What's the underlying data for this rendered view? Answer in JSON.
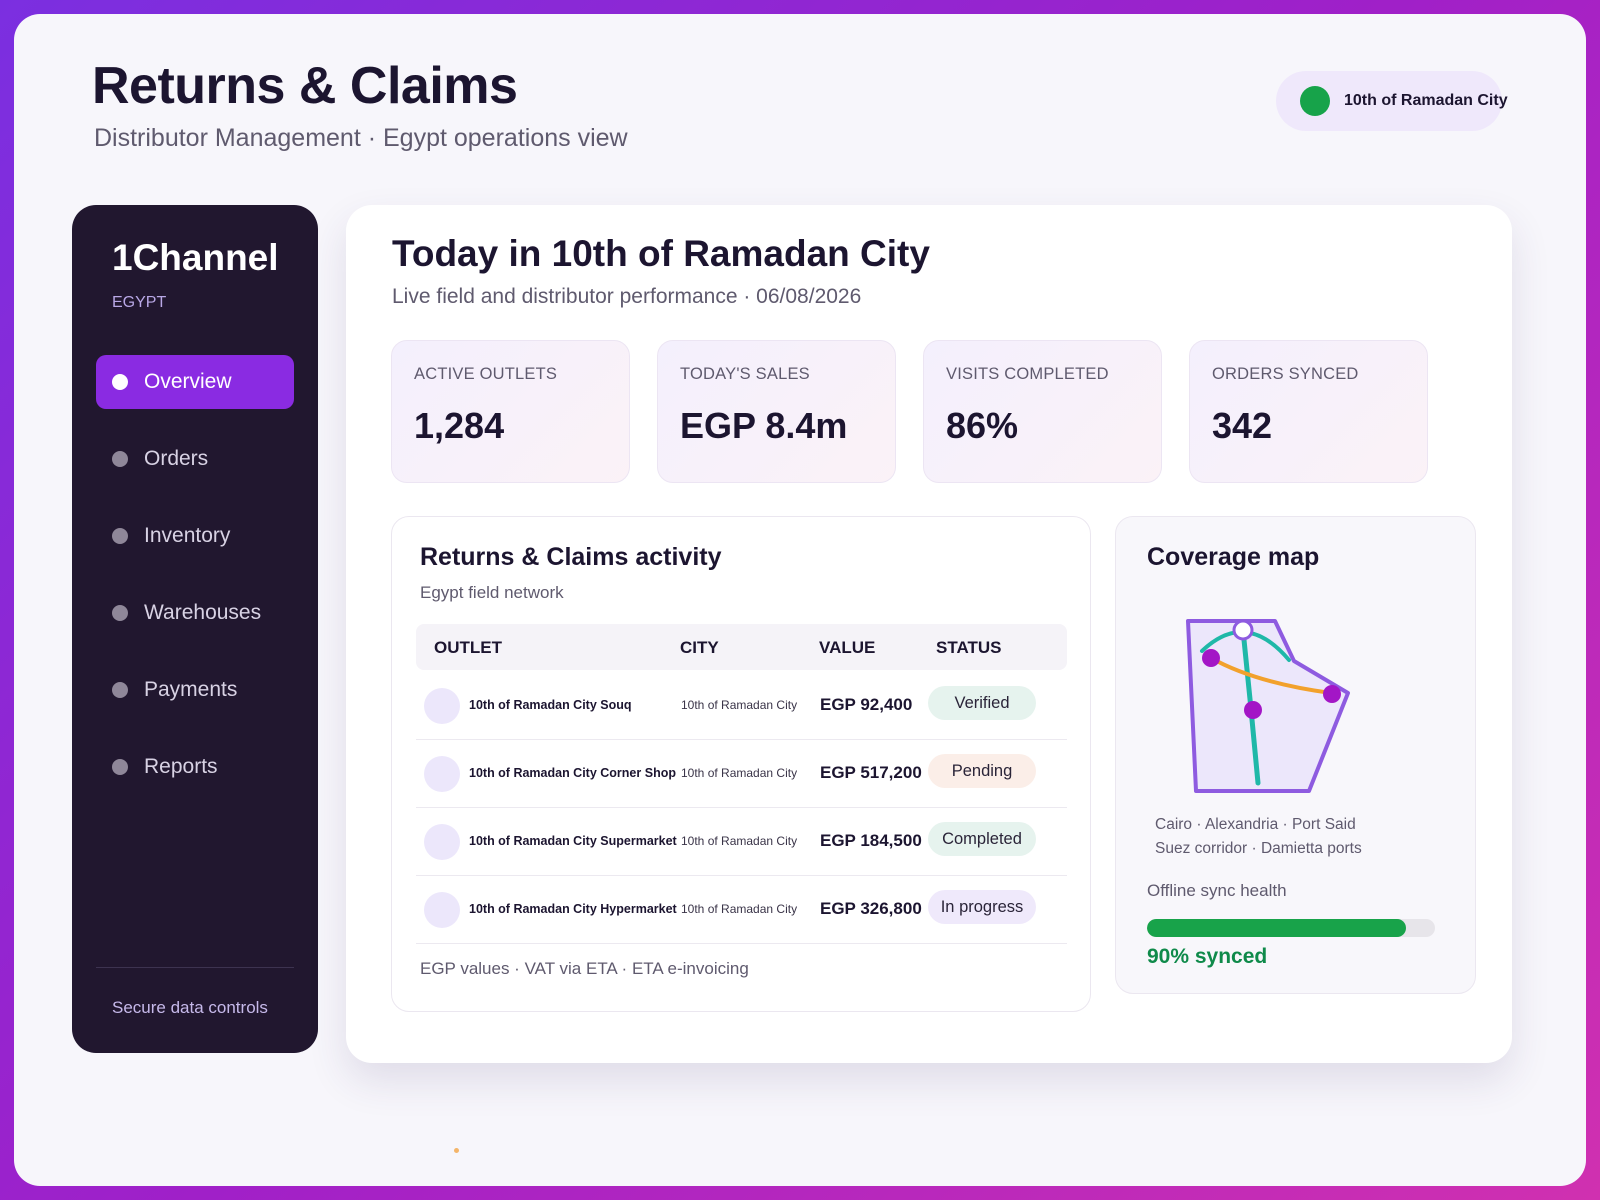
{
  "header": {
    "title": "Returns & Claims",
    "subtitle": "Distributor Management · Egypt operations view",
    "location": "10th of Ramadan City",
    "location_dot_color": "#17a34a"
  },
  "sidebar": {
    "brand": "1Channel",
    "country": "EGYPT",
    "items": [
      {
        "label": "Overview",
        "active": true
      },
      {
        "label": "Orders",
        "active": false
      },
      {
        "label": "Inventory",
        "active": false
      },
      {
        "label": "Warehouses",
        "active": false
      },
      {
        "label": "Payments",
        "active": false
      },
      {
        "label": "Reports",
        "active": false
      }
    ],
    "footer": "Secure data controls",
    "accent_color": "#8a2be2"
  },
  "main": {
    "title": "Today in 10th of Ramadan City",
    "subtitle": "Live field and distributor performance · 06/08/2026",
    "kpis": [
      {
        "label": "ACTIVE OUTLETS",
        "value": "1,284"
      },
      {
        "label": "TODAY'S SALES",
        "value": "EGP 8.4m"
      },
      {
        "label": "VISITS COMPLETED",
        "value": "86%"
      },
      {
        "label": "ORDERS SYNCED",
        "value": "342"
      }
    ]
  },
  "activity": {
    "title": "Returns & Claims activity",
    "subtitle": "Egypt field network",
    "columns": [
      "OUTLET",
      "CITY",
      "VALUE",
      "STATUS"
    ],
    "rows": [
      {
        "outlet": "10th of Ramadan City Souq",
        "city": "10th of Ramadan City",
        "value": "EGP 92,400",
        "status": "Verified"
      },
      {
        "outlet": "10th of Ramadan City Corner Shop",
        "city": "10th of Ramadan City",
        "value": "EGP 517,200",
        "status": "Pending"
      },
      {
        "outlet": "10th of Ramadan City Supermarket",
        "city": "10th of Ramadan City",
        "value": "EGP 184,500",
        "status": "Completed"
      },
      {
        "outlet": "10th of Ramadan City Hypermarket",
        "city": "10th of Ramadan City",
        "value": "EGP 326,800",
        "status": "In progress"
      }
    ],
    "footer": "EGP values · VAT via ETA · ETA e-invoicing"
  },
  "coverage": {
    "title": "Coverage map",
    "cities_line1": "Cairo · Alexandria · Port Said",
    "cities_line2": "Suez corridor · Damietta ports",
    "sync_label": "Offline sync health",
    "sync_percent": 90,
    "sync_text": "90% synced",
    "map_icon": "coverage-map-icon"
  }
}
